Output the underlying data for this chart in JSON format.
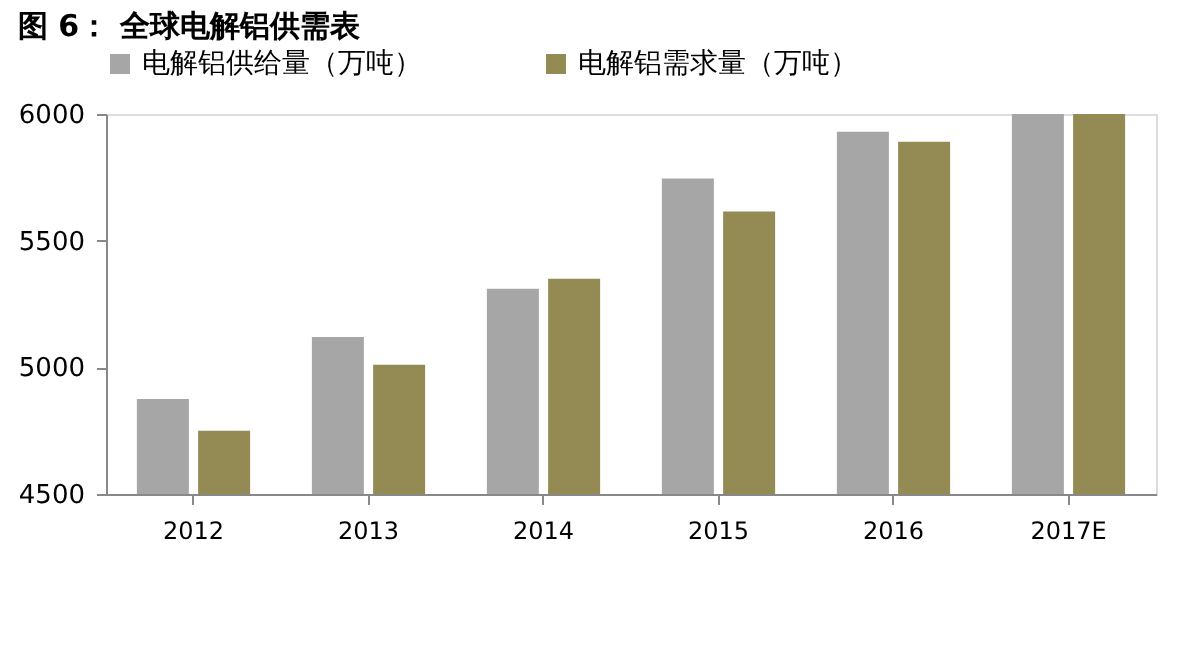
{
  "chart_data": {
    "type": "bar",
    "title": "图 6：    全球电解铝供需表",
    "categories": [
      "2012",
      "2013",
      "2014",
      "2015",
      "2016",
      "2017E"
    ],
    "series": [
      {
        "name": "电解铝供给量（万吨）",
        "color": "#a6a6a6",
        "values": [
          4875,
          5120,
          5310,
          5745,
          5930,
          6000
        ]
      },
      {
        "name": "电解铝需求量（万吨）",
        "color": "#948a54",
        "values": [
          4750,
          5010,
          5350,
          5615,
          5890,
          6000
        ]
      }
    ],
    "ylim": [
      4500,
      6000
    ],
    "yticks": [
      4500,
      5000,
      5500,
      6000
    ],
    "grid": false,
    "legend": "top"
  }
}
